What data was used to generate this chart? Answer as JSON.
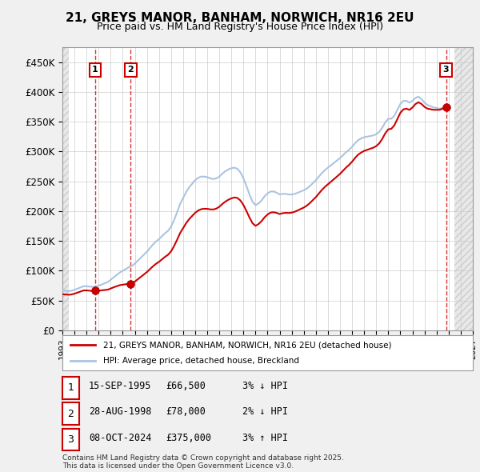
{
  "title": "21, GREYS MANOR, BANHAM, NORWICH, NR16 2EU",
  "subtitle": "Price paid vs. HM Land Registry's House Price Index (HPI)",
  "ylabel_ticks": [
    "£0",
    "£50K",
    "£100K",
    "£150K",
    "£200K",
    "£250K",
    "£300K",
    "£350K",
    "£400K",
    "£450K"
  ],
  "ytick_values": [
    0,
    50000,
    100000,
    150000,
    200000,
    250000,
    300000,
    350000,
    400000,
    450000
  ],
  "ylim": [
    0,
    475000
  ],
  "xlim_start": 1993.0,
  "xlim_end": 2027.0,
  "hpi_color": "#aac4e0",
  "price_color": "#cc0000",
  "sale_color": "#cc0000",
  "background_color": "#f0f0f0",
  "plot_bg_color": "#ffffff",
  "hatch_color": "#d8d8d8",
  "sales": [
    {
      "label": "1",
      "date_dec": 1995.71,
      "price": 66500,
      "date_str": "15-SEP-1995",
      "pct": "3%",
      "dir": "↓"
    },
    {
      "label": "2",
      "date_dec": 1998.66,
      "price": 78000,
      "date_str": "28-AUG-1998",
      "pct": "2%",
      "dir": "↓"
    },
    {
      "label": "3",
      "date_dec": 2024.78,
      "price": 375000,
      "date_str": "08-OCT-2024",
      "pct": "3%",
      "dir": "↑"
    }
  ],
  "legend_line1": "21, GREYS MANOR, BANHAM, NORWICH, NR16 2EU (detached house)",
  "legend_line2": "HPI: Average price, detached house, Breckland",
  "footer": "Contains HM Land Registry data © Crown copyright and database right 2025.\nThis data is licensed under the Open Government Licence v3.0.",
  "hpi_data": {
    "years": [
      1993.0,
      1993.25,
      1993.5,
      1993.75,
      1994.0,
      1994.25,
      1994.5,
      1994.75,
      1995.0,
      1995.25,
      1995.5,
      1995.75,
      1996.0,
      1996.25,
      1996.5,
      1996.75,
      1997.0,
      1997.25,
      1997.5,
      1997.75,
      1998.0,
      1998.25,
      1998.5,
      1998.75,
      1999.0,
      1999.25,
      1999.5,
      1999.75,
      2000.0,
      2000.25,
      2000.5,
      2000.75,
      2001.0,
      2001.25,
      2001.5,
      2001.75,
      2002.0,
      2002.25,
      2002.5,
      2002.75,
      2003.0,
      2003.25,
      2003.5,
      2003.75,
      2004.0,
      2004.25,
      2004.5,
      2004.75,
      2005.0,
      2005.25,
      2005.5,
      2005.75,
      2006.0,
      2006.25,
      2006.5,
      2006.75,
      2007.0,
      2007.25,
      2007.5,
      2007.75,
      2008.0,
      2008.25,
      2008.5,
      2008.75,
      2009.0,
      2009.25,
      2009.5,
      2009.75,
      2010.0,
      2010.25,
      2010.5,
      2010.75,
      2011.0,
      2011.25,
      2011.5,
      2011.75,
      2012.0,
      2012.25,
      2012.5,
      2012.75,
      2013.0,
      2013.25,
      2013.5,
      2013.75,
      2014.0,
      2014.25,
      2014.5,
      2014.75,
      2015.0,
      2015.25,
      2015.5,
      2015.75,
      2016.0,
      2016.25,
      2016.5,
      2016.75,
      2017.0,
      2017.25,
      2017.5,
      2017.75,
      2018.0,
      2018.25,
      2018.5,
      2018.75,
      2019.0,
      2019.25,
      2019.5,
      2019.75,
      2020.0,
      2020.25,
      2020.5,
      2020.75,
      2021.0,
      2021.25,
      2021.5,
      2021.75,
      2022.0,
      2022.25,
      2022.5,
      2022.75,
      2023.0,
      2023.25,
      2023.5,
      2023.75,
      2024.0,
      2024.25,
      2024.5,
      2024.75
    ],
    "values": [
      67000,
      66500,
      66000,
      66500,
      68000,
      70000,
      72000,
      74000,
      74000,
      73500,
      73000,
      73500,
      75000,
      77000,
      79000,
      81000,
      85000,
      89000,
      93000,
      97000,
      100000,
      103000,
      106000,
      108000,
      112000,
      117000,
      122000,
      127000,
      132000,
      138000,
      144000,
      149000,
      153000,
      158000,
      163000,
      167000,
      174000,
      185000,
      198000,
      212000,
      222000,
      232000,
      240000,
      246000,
      252000,
      256000,
      258000,
      258000,
      257000,
      255000,
      254000,
      255000,
      258000,
      263000,
      267000,
      270000,
      272000,
      273000,
      271000,
      265000,
      255000,
      242000,
      228000,
      216000,
      210000,
      213000,
      218000,
      225000,
      230000,
      233000,
      233000,
      231000,
      228000,
      229000,
      229000,
      228000,
      228000,
      229000,
      231000,
      233000,
      235000,
      238000,
      242000,
      247000,
      252000,
      258000,
      264000,
      269000,
      273000,
      277000,
      281000,
      285000,
      289000,
      294000,
      299000,
      303000,
      308000,
      314000,
      319000,
      322000,
      324000,
      325000,
      326000,
      327000,
      329000,
      333000,
      340000,
      349000,
      355000,
      355000,
      360000,
      370000,
      380000,
      385000,
      385000,
      382000,
      385000,
      390000,
      392000,
      388000,
      382000,
      378000,
      376000,
      374000,
      373000,
      372000,
      373000,
      375000
    ]
  }
}
